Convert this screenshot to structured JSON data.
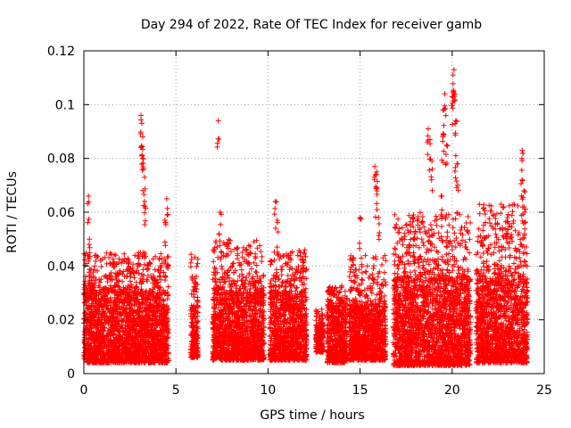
{
  "chart_data": {
    "type": "scatter",
    "title": "Day 294 of 2022, Rate Of TEC Index for receiver gamb",
    "xlabel": "GPS time / hours",
    "ylabel": "ROTI / TECUs",
    "xlim": [
      0,
      25
    ],
    "ylim": [
      0,
      0.12
    ],
    "xticks": [
      0,
      5,
      10,
      15,
      20,
      25
    ],
    "xtick_labels": [
      "0",
      "5",
      "10",
      "15",
      "20",
      "25"
    ],
    "yticks": [
      0,
      0.02,
      0.04,
      0.06,
      0.08,
      0.1,
      0.12
    ],
    "ytick_labels": [
      "0",
      "0.02",
      "0.04",
      "0.06",
      "0.08",
      "0.1",
      "0.12"
    ],
    "grid": true,
    "marker": "+",
    "color": "#ff0000",
    "series": [
      {
        "segments": [
          {
            "x_start": 0.0,
            "x_end": 4.6,
            "y_min": 0.004,
            "y_max": 0.045,
            "dense_max": 0.03
          },
          {
            "x_start": 5.8,
            "x_end": 6.2,
            "y_min": 0.006,
            "y_max": 0.045,
            "dense_max": 0.025
          },
          {
            "x_start": 7.0,
            "x_end": 9.8,
            "y_min": 0.005,
            "y_max": 0.05,
            "dense_max": 0.03
          },
          {
            "x_start": 10.1,
            "x_end": 12.1,
            "y_min": 0.005,
            "y_max": 0.046,
            "dense_max": 0.03
          },
          {
            "x_start": 12.6,
            "x_end": 13.0,
            "y_min": 0.008,
            "y_max": 0.024,
            "dense_max": 0.018
          },
          {
            "x_start": 13.2,
            "x_end": 14.3,
            "y_min": 0.004,
            "y_max": 0.033,
            "dense_max": 0.025
          },
          {
            "x_start": 14.4,
            "x_end": 16.4,
            "y_min": 0.005,
            "y_max": 0.044,
            "dense_max": 0.025
          },
          {
            "x_start": 16.8,
            "x_end": 21.0,
            "y_min": 0.003,
            "y_max": 0.06,
            "dense_max": 0.035
          },
          {
            "x_start": 21.3,
            "x_end": 24.1,
            "y_min": 0.004,
            "y_max": 0.063,
            "dense_max": 0.035
          }
        ],
        "peaks": [
          {
            "x": 0.25,
            "y": 0.066
          },
          {
            "x": 0.3,
            "y": 0.05
          },
          {
            "x": 3.1,
            "y": 0.096
          },
          {
            "x": 3.15,
            "y": 0.093
          },
          {
            "x": 3.2,
            "y": 0.088
          },
          {
            "x": 3.2,
            "y": 0.08
          },
          {
            "x": 3.3,
            "y": 0.073
          },
          {
            "x": 3.3,
            "y": 0.064
          },
          {
            "x": 4.5,
            "y": 0.065
          },
          {
            "x": 4.4,
            "y": 0.057
          },
          {
            "x": 7.3,
            "y": 0.094
          },
          {
            "x": 7.4,
            "y": 0.06
          },
          {
            "x": 10.4,
            "y": 0.064
          },
          {
            "x": 10.5,
            "y": 0.057
          },
          {
            "x": 15.0,
            "y": 0.058
          },
          {
            "x": 15.8,
            "y": 0.077
          },
          {
            "x": 15.9,
            "y": 0.075
          },
          {
            "x": 15.9,
            "y": 0.069
          },
          {
            "x": 18.7,
            "y": 0.091
          },
          {
            "x": 18.8,
            "y": 0.087
          },
          {
            "x": 18.9,
            "y": 0.079
          },
          {
            "x": 19.5,
            "y": 0.098
          },
          {
            "x": 19.6,
            "y": 0.104
          },
          {
            "x": 19.5,
            "y": 0.088
          },
          {
            "x": 19.7,
            "y": 0.085
          },
          {
            "x": 20.1,
            "y": 0.113
          },
          {
            "x": 20.05,
            "y": 0.111
          },
          {
            "x": 20.0,
            "y": 0.103
          },
          {
            "x": 20.1,
            "y": 0.104
          },
          {
            "x": 20.2,
            "y": 0.094
          },
          {
            "x": 20.2,
            "y": 0.081
          },
          {
            "x": 20.3,
            "y": 0.078
          },
          {
            "x": 19.4,
            "y": 0.066
          },
          {
            "x": 23.8,
            "y": 0.083
          },
          {
            "x": 23.8,
            "y": 0.072
          },
          {
            "x": 23.9,
            "y": 0.068
          },
          {
            "x": 23.9,
            "y": 0.062
          },
          {
            "x": 22.8,
            "y": 0.062
          },
          {
            "x": 23.0,
            "y": 0.058
          },
          {
            "x": 16.0,
            "y": 0.058
          },
          {
            "x": 17.9,
            "y": 0.059
          },
          {
            "x": 17.9,
            "y": 0.05
          },
          {
            "x": 12.0,
            "y": 0.046
          }
        ]
      }
    ]
  }
}
